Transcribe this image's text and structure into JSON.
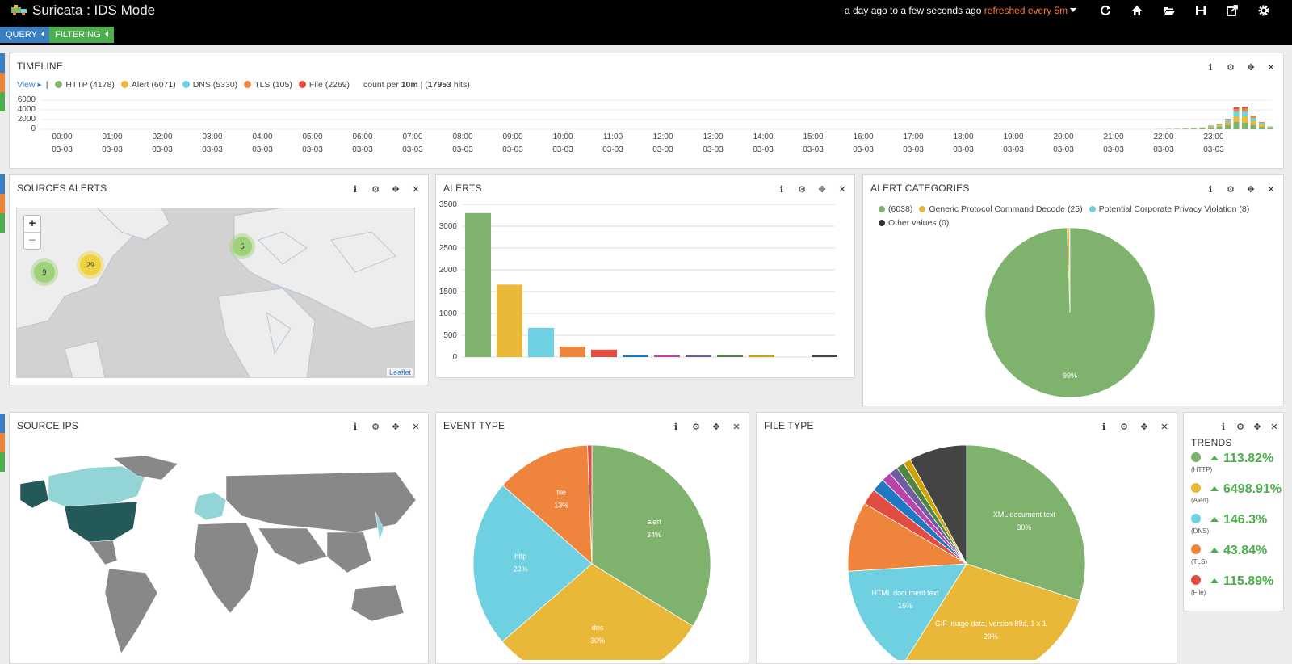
{
  "app": {
    "title": "Suricata : IDS Mode",
    "time_range": "a day ago to a few seconds ago",
    "refresh_text": "refreshed every 5m"
  },
  "toolbar": {
    "icons": [
      "refresh-icon",
      "home-icon",
      "folder-open-icon",
      "save-icon",
      "share-icon",
      "gear-icon"
    ]
  },
  "subbar": {
    "query_label": "QUERY",
    "filtering_label": "FILTERING"
  },
  "colors": {
    "green": "#7eb26d",
    "yellow": "#eab839",
    "blue": "#6ed0e0",
    "orange": "#ef843c",
    "red": "#e24d42",
    "dark": "#444444"
  },
  "timeline": {
    "title": "TIMELINE",
    "view_label": "View",
    "separator": "|",
    "legend": [
      {
        "label": "HTTP (4178)",
        "color": "#7eb26d"
      },
      {
        "label": "Alert (6071)",
        "color": "#eab839"
      },
      {
        "label": "DNS (5330)",
        "color": "#6ed0e0"
      },
      {
        "label": "TLS (105)",
        "color": "#ef843c"
      },
      {
        "label": "File (2269)",
        "color": "#e24d42"
      }
    ],
    "count_pre": "count per ",
    "interval": "10m",
    "count_mid": " | (",
    "hits": "17953",
    "count_post": " hits)",
    "yticks": [
      "6000",
      "4000",
      "2000",
      "0"
    ],
    "xticks": [
      "00:00",
      "01:00",
      "02:00",
      "03:00",
      "04:00",
      "05:00",
      "06:00",
      "07:00",
      "08:00",
      "09:00",
      "10:00",
      "11:00",
      "12:00",
      "13:00",
      "14:00",
      "15:00",
      "16:00",
      "17:00",
      "18:00",
      "19:00",
      "20:00",
      "21:00",
      "22:00",
      "23:00"
    ],
    "xdate": "03-03"
  },
  "sources_alerts": {
    "title": "SOURCES ALERTS",
    "zoom_in": "+",
    "zoom_out": "−",
    "attribution": "Leaflet",
    "clusters": [
      {
        "count": "9"
      },
      {
        "count": "29"
      },
      {
        "count": "5"
      }
    ]
  },
  "alerts": {
    "title": "ALERTS",
    "chart_data": {
      "type": "bar",
      "values": [
        3300,
        1660,
        670,
        240,
        170,
        40,
        25,
        25,
        20,
        20,
        0,
        40
      ],
      "colors": [
        "#7eb26d",
        "#eab839",
        "#6ed0e0",
        "#ef843c",
        "#e24d42",
        "#1f78c1",
        "#ba43a9",
        "#705da0",
        "#508642",
        "#cca300",
        "#447ebc",
        "#444444"
      ],
      "yticks": [
        "3500",
        "3000",
        "2500",
        "2000",
        "1500",
        "1000",
        "500",
        "0"
      ],
      "ylim": [
        0,
        3500
      ]
    }
  },
  "alert_categories": {
    "title": "ALERT CATEGORIES",
    "legend": [
      {
        "label": "(6038)",
        "color": "#7eb26d"
      },
      {
        "label": "Generic Protocol Command Decode (25)",
        "color": "#eab839"
      },
      {
        "label": "Potential Corporate Privacy Violation (8)",
        "color": "#6ed0e0"
      },
      {
        "label": "Other values (0)",
        "color": "#333333"
      }
    ],
    "chart_data": {
      "type": "pie",
      "values": [
        6038,
        25,
        8,
        0
      ],
      "label": "99%"
    }
  },
  "source_ips": {
    "title": "SOURCE IPS"
  },
  "event_type": {
    "title": "EVENT TYPE",
    "chart_data": {
      "type": "pie",
      "slices": [
        {
          "name": "alert",
          "pct": 34,
          "label": "34%",
          "color": "#7eb26d"
        },
        {
          "name": "dns",
          "pct": 30,
          "label": "30%",
          "color": "#eab839"
        },
        {
          "name": "http",
          "pct": 23,
          "label": "23%",
          "color": "#6ed0e0"
        },
        {
          "name": "file",
          "pct": 13,
          "label": "13%",
          "color": "#ef843c"
        },
        {
          "name": "",
          "pct": 0.6,
          "label": "",
          "color": "#e24d42"
        }
      ]
    }
  },
  "file_type": {
    "title": "FILE TYPE",
    "chart_data": {
      "type": "pie",
      "slices": [
        {
          "name": "XML document text",
          "pct": 30,
          "label": "30%",
          "color": "#7eb26d"
        },
        {
          "name": "GIF image data, version 89a, 1 x 1",
          "pct": 29,
          "label": "29%",
          "color": "#eab839"
        },
        {
          "name": "HTML document text",
          "pct": 15,
          "label": "15%",
          "color": "#6ed0e0"
        },
        {
          "name": "",
          "pct": 9.5,
          "label": "",
          "color": "#ef843c"
        },
        {
          "name": "",
          "pct": 2.2,
          "label": "",
          "color": "#e24d42"
        },
        {
          "name": "",
          "pct": 1.8,
          "label": "",
          "color": "#1f78c1"
        },
        {
          "name": "",
          "pct": 1.3,
          "label": "",
          "color": "#ba43a9"
        },
        {
          "name": "",
          "pct": 1.2,
          "label": "",
          "color": "#705da0"
        },
        {
          "name": "",
          "pct": 1.1,
          "label": "",
          "color": "#508642"
        },
        {
          "name": "",
          "pct": 1.0,
          "label": "",
          "color": "#cca300"
        },
        {
          "name": "",
          "pct": 7.9,
          "label": "",
          "color": "#444444"
        }
      ]
    }
  },
  "trends": {
    "title": "TRENDS",
    "items": [
      {
        "value": "113.82%",
        "sub": "(HTTP)",
        "color": "#7eb26d"
      },
      {
        "value": "6498.91%",
        "sub": "(Alert)",
        "color": "#eab839"
      },
      {
        "value": "146.3%",
        "sub": "(DNS)",
        "color": "#6ed0e0"
      },
      {
        "value": "43.84%",
        "sub": "(TLS)",
        "color": "#ef843c"
      },
      {
        "value": "115.89%",
        "sub": "(File)",
        "color": "#e24d42"
      }
    ]
  }
}
